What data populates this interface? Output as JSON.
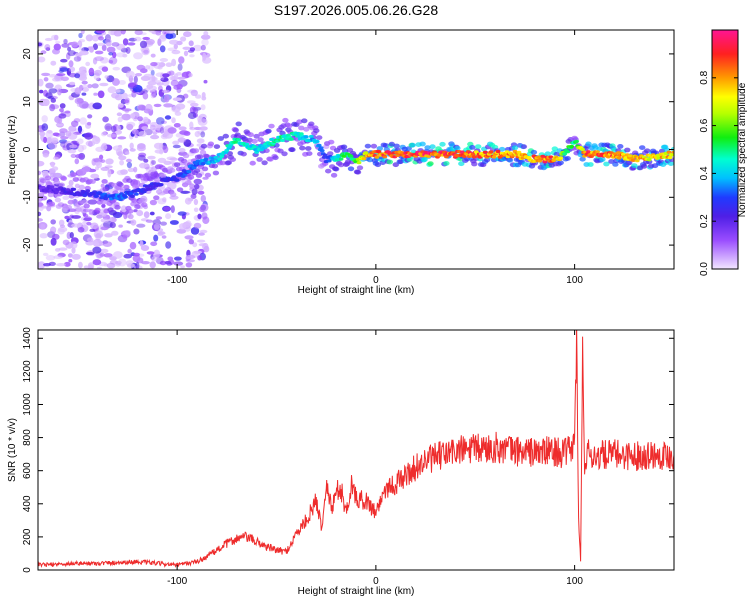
{
  "figure": {
    "title": "S197.2026.005.06.26.G28"
  },
  "chart_data": [
    {
      "type": "heatmap",
      "xlabel": "Height of straight line (km)",
      "ylabel": "Frequency (Hz)",
      "xlim": [
        -170,
        150
      ],
      "ylim": [
        -25,
        25
      ],
      "x_ticks": [
        -100,
        0,
        100
      ],
      "y_ticks": [
        -20,
        -10,
        0,
        10,
        20
      ],
      "colorbar": {
        "label": "Normalized spectral amplitude",
        "range": [
          0.0,
          1.0
        ],
        "ticks": [
          0.0,
          0.2,
          0.4,
          0.6,
          0.8
        ]
      },
      "ridge": {
        "x": [
          -170,
          -150,
          -130,
          -120,
          -110,
          -100,
          -90,
          -80,
          -70,
          -60,
          -50,
          -40,
          -30,
          -25,
          -20,
          -15,
          -10,
          -5,
          0,
          10,
          30,
          50,
          70,
          80,
          85,
          90,
          95,
          100,
          105,
          120,
          130,
          150
        ],
        "y": [
          -8,
          -9,
          -10,
          -9,
          -7,
          -6,
          -3,
          -2,
          2,
          0,
          2,
          3,
          2,
          -2,
          -2,
          -1,
          -3,
          -1,
          -1,
          -1,
          -1,
          -1,
          -1,
          -2,
          -2,
          -2,
          -1,
          2,
          -1,
          -1,
          -2,
          -1
        ],
        "amplitude": [
          0.2,
          0.25,
          0.35,
          0.3,
          0.25,
          0.3,
          0.35,
          0.45,
          0.5,
          0.45,
          0.5,
          0.5,
          0.4,
          0.3,
          0.45,
          0.55,
          0.6,
          0.8,
          0.9,
          0.95,
          0.95,
          0.9,
          0.85,
          0.9,
          0.9,
          0.85,
          0.6,
          0.5,
          0.9,
          0.9,
          0.8,
          0.8
        ]
      }
    },
    {
      "type": "line",
      "xlabel": "Height of straight line (km)",
      "ylabel": "SNR (10 * v/v)",
      "xlim": [
        -170,
        150
      ],
      "ylim": [
        0,
        1450
      ],
      "x_ticks": [
        -100,
        0,
        100
      ],
      "y_ticks": [
        0,
        200,
        400,
        600,
        800,
        1000,
        1200,
        1400
      ],
      "color": "#ee2c2c",
      "series": [
        {
          "x": [
            -170,
            -160,
            -150,
            -140,
            -130,
            -120,
            -110,
            -100,
            -95,
            -90,
            -85,
            -80,
            -75,
            -70,
            -65,
            -60,
            -55,
            -50,
            -45,
            -40,
            -35,
            -30,
            -27,
            -25,
            -22,
            -20,
            -17,
            -15,
            -12,
            -10,
            -5,
            0,
            5,
            10,
            15,
            20,
            25,
            30,
            35,
            40,
            50,
            60,
            70,
            80,
            90,
            95,
            100,
            101,
            102,
            103,
            104,
            105,
            106,
            108,
            110,
            120,
            130,
            140,
            150
          ],
          "y": [
            30,
            35,
            40,
            40,
            45,
            50,
            40,
            30,
            40,
            50,
            80,
            120,
            160,
            190,
            200,
            170,
            140,
            120,
            110,
            220,
            300,
            420,
            250,
            550,
            350,
            500,
            460,
            350,
            530,
            430,
            420,
            350,
            500,
            520,
            570,
            620,
            660,
            680,
            700,
            720,
            730,
            740,
            720,
            710,
            720,
            700,
            760,
            1420,
            300,
            50,
            1300,
            650,
            700,
            700,
            690,
            700,
            690,
            700,
            690
          ]
        }
      ]
    }
  ]
}
